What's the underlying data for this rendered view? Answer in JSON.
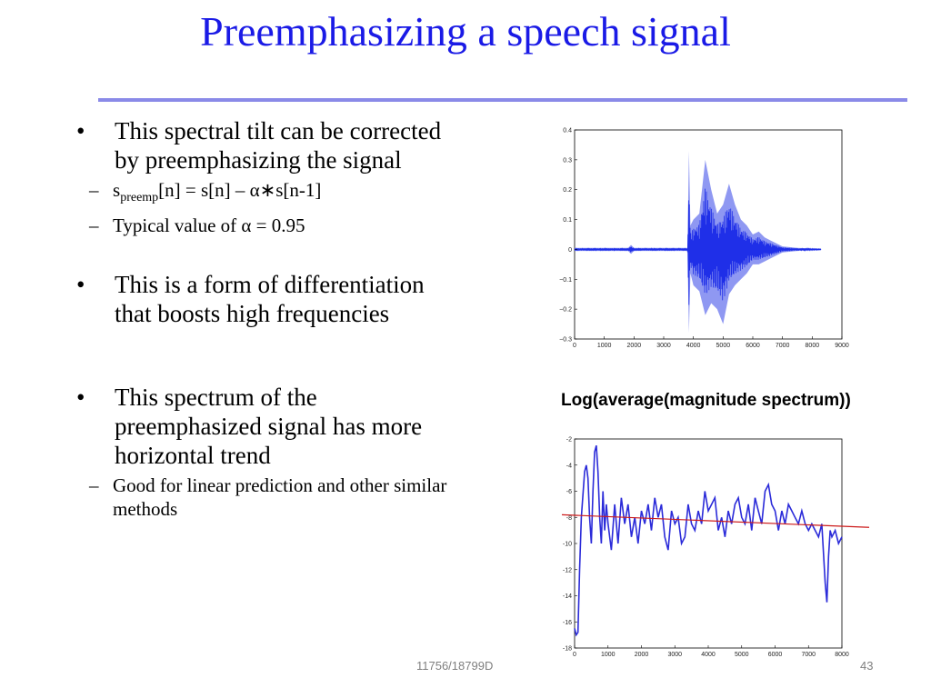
{
  "slide": {
    "title": "Preemphasizing a speech signal",
    "footer_center": "11756/18799D",
    "page_number": "43",
    "caption": "Log(average(magnitude spectrum))"
  },
  "bullets": {
    "b1": {
      "symbol": "•",
      "text": "This spectral tilt can be corrected by preemphasizing the signal"
    },
    "b1_sub1": {
      "symbol": "–",
      "s": "s",
      "sub": "preemp",
      "rest": "[n] = s[n] – α∗s[n-1]"
    },
    "b1_sub2": {
      "symbol": "–",
      "text": "Typical value of α = 0.95"
    },
    "b2": {
      "symbol": "•",
      "text": "This is a form of differentiation that boosts high frequencies"
    },
    "b3": {
      "symbol": "•",
      "text": "This spectrum of the preemphasized  signal has more horizontal trend"
    },
    "b3_sub1": {
      "symbol": "–",
      "text": "Good for linear prediction and other similar methods"
    }
  },
  "colors": {
    "title": "#1a1ae6",
    "rule": "#8a8ae8",
    "waveform": "#1f2fe8",
    "waveform_light": "#8f98f2",
    "spectrum": "#2b2bd9",
    "trend": "#cc1a1a"
  },
  "chart_data": [
    {
      "type": "line",
      "description_of_series": "waveform",
      "xlim": [
        0,
        9000
      ],
      "ylim": [
        -0.3,
        0.4
      ],
      "x_ticks": [
        "0",
        "1000",
        "2000",
        "3000",
        "4000",
        "5000",
        "6000",
        "7000",
        "8000",
        "9000"
      ],
      "y_ticks": [
        "0.4",
        "0.3",
        "0.2",
        "0.1",
        "0",
        "−0.1",
        "−0.2",
        "−0.3"
      ],
      "envelope": {
        "x": [
          0,
          1800,
          1900,
          2000,
          3800,
          3850,
          3900,
          4000,
          4200,
          4400,
          4600,
          4800,
          5000,
          5200,
          5400,
          5600,
          5800,
          6000,
          6200,
          6400,
          6600,
          6800,
          7000,
          7500,
          8000,
          8300
        ],
        "upper": [
          0.005,
          0.005,
          0.015,
          0.005,
          0.005,
          0.33,
          0.08,
          0.1,
          0.12,
          0.3,
          0.2,
          0.12,
          0.15,
          0.22,
          0.15,
          0.1,
          0.08,
          0.05,
          0.06,
          0.04,
          0.03,
          0.02,
          0.01,
          0.005,
          0.003,
          0.002
        ],
        "lower": [
          -0.005,
          -0.005,
          -0.015,
          -0.005,
          -0.005,
          -0.28,
          -0.08,
          -0.12,
          -0.14,
          -0.22,
          -0.18,
          -0.2,
          -0.25,
          -0.15,
          -0.12,
          -0.1,
          -0.08,
          -0.05,
          -0.05,
          -0.04,
          -0.03,
          -0.02,
          -0.01,
          -0.005,
          -0.003,
          -0.002
        ]
      }
    },
    {
      "type": "line",
      "xlim": [
        0,
        8000
      ],
      "ylim": [
        -18,
        -2
      ],
      "x_ticks": [
        "0",
        "1000",
        "2000",
        "3000",
        "4000",
        "5000",
        "6000",
        "7000",
        "8000"
      ],
      "y_ticks": [
        "-2",
        "-4",
        "-6",
        "-8",
        "-10",
        "-12",
        "-14",
        "-16",
        "-18"
      ],
      "series": [
        {
          "x": [
            0,
            50,
            100,
            150,
            200,
            300,
            350,
            400,
            450,
            500,
            550,
            600,
            650,
            700,
            750,
            800,
            850,
            900,
            950,
            1000,
            1100,
            1200,
            1300,
            1400,
            1500,
            1600,
            1700,
            1800,
            1900,
            2000,
            2100,
            2200,
            2300,
            2400,
            2500,
            2600,
            2700,
            2800,
            2900,
            3000,
            3100,
            3200,
            3300,
            3400,
            3500,
            3600,
            3700,
            3800,
            3900,
            4000,
            4100,
            4200,
            4300,
            4400,
            4500,
            4600,
            4700,
            4800,
            4900,
            5000,
            5100,
            5200,
            5300,
            5400,
            5500,
            5600,
            5700,
            5800,
            5900,
            6000,
            6100,
            6200,
            6300,
            6400,
            6500,
            6600,
            6700,
            6800,
            6900,
            7000,
            7100,
            7200,
            7300,
            7400,
            7500,
            7550,
            7600,
            7650,
            7700,
            7800,
            7900,
            8000
          ],
          "y": [
            -16.5,
            -17,
            -16.8,
            -12,
            -8,
            -4.5,
            -4,
            -5,
            -8,
            -10,
            -6,
            -3,
            -2.5,
            -4.5,
            -8,
            -10,
            -6,
            -9,
            -7,
            -8.5,
            -10.5,
            -7,
            -10,
            -6.5,
            -8.5,
            -7,
            -9.5,
            -8,
            -10,
            -7.5,
            -8.5,
            -7,
            -9,
            -6.5,
            -8,
            -7,
            -9.5,
            -10.5,
            -7.5,
            -8.5,
            -8,
            -10,
            -9.5,
            -7,
            -8.5,
            -9,
            -7.5,
            -8.5,
            -6,
            -7.5,
            -7,
            -6.5,
            -9,
            -8,
            -9.5,
            -7.5,
            -8.5,
            -7,
            -6.5,
            -8,
            -8.5,
            -7,
            -9,
            -6.5,
            -7.5,
            -8.5,
            -6,
            -5.5,
            -7,
            -7.5,
            -9,
            -7.5,
            -8.5,
            -7,
            -7.5,
            -8,
            -8.5,
            -7.5,
            -8.5,
            -9,
            -8.5,
            -9,
            -9.5,
            -8.5,
            -13,
            -14.5,
            -11,
            -9,
            -9.5,
            -9,
            -10,
            -9.5
          ]
        }
      ],
      "trend": {
        "x": [
          0,
          8000
        ],
        "y": [
          -7.8,
          -8.8
        ]
      }
    }
  ]
}
